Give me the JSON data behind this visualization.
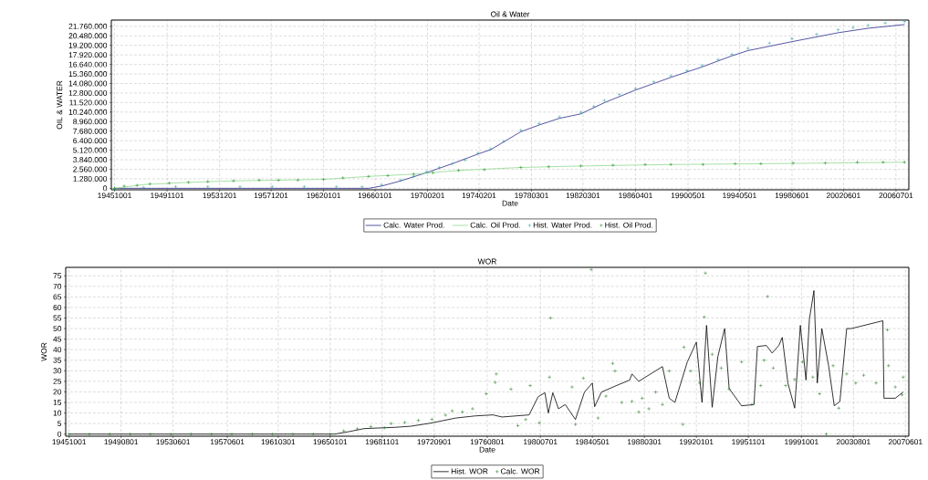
{
  "chart_data": [
    {
      "type": "line",
      "title": "Oil & Water",
      "xlabel": "Date",
      "ylabel": "OIL & WATER",
      "xlim": [
        "1945-07-01",
        "2007-07-01"
      ],
      "ylim": [
        -200000,
        22600000
      ],
      "xticks": [
        {
          "value": "1945-10-01",
          "label": "19451001"
        },
        {
          "value": "1949-11-01",
          "label": "19491101"
        },
        {
          "value": "1953-12-01",
          "label": "19531201"
        },
        {
          "value": "1957-12-01",
          "label": "19571201"
        },
        {
          "value": "1962-01-01",
          "label": "19620101"
        },
        {
          "value": "1966-01-01",
          "label": "19660101"
        },
        {
          "value": "1970-02-01",
          "label": "19700201"
        },
        {
          "value": "1974-02-01",
          "label": "19740201"
        },
        {
          "value": "1978-03-01",
          "label": "19780301"
        },
        {
          "value": "1982-03-01",
          "label": "19820301"
        },
        {
          "value": "1986-04-01",
          "label": "19860401"
        },
        {
          "value": "1990-05-01",
          "label": "19900501"
        },
        {
          "value": "1994-05-01",
          "label": "19940501"
        },
        {
          "value": "1998-06-01",
          "label": "19980601"
        },
        {
          "value": "2002-06-01",
          "label": "20020601"
        },
        {
          "value": "2006-07-01",
          "label": "20060701"
        }
      ],
      "yticks": [
        0,
        {
          "value": 1280000,
          "label": "1.280.000"
        },
        {
          "value": 2560000,
          "label": "2.560.000"
        },
        {
          "value": 3840000,
          "label": "3.840.000"
        },
        {
          "value": 5120000,
          "label": "5.120.000"
        },
        {
          "value": 6400000,
          "label": "6.400.000"
        },
        {
          "value": 7680000,
          "label": "7.680.000"
        },
        {
          "value": 8960000,
          "label": "8.960.000"
        },
        {
          "value": 10240000,
          "label": "10.240.000"
        },
        {
          "value": 11520000,
          "label": "11.520.000"
        },
        {
          "value": 12800000,
          "label": "12.800.000"
        },
        {
          "value": 14080000,
          "label": "14.080.000"
        },
        {
          "value": 15360000,
          "label": "15.360.000"
        },
        {
          "value": 16640000,
          "label": "16.640.000"
        },
        {
          "value": 17920000,
          "label": "17.920.000"
        },
        {
          "value": 19200000,
          "label": "19.200.000"
        },
        {
          "value": 20480000,
          "label": "20.480.000"
        },
        {
          "value": 21760000,
          "label": "21.760.000"
        }
      ],
      "grid": true,
      "legend": "bottom",
      "series": [
        {
          "name": "Calc. Water Prod.",
          "type": "line",
          "color": "#2b2b8c",
          "x": [
            "1945-10",
            "1965-07",
            "1966-07",
            "1968-01",
            "1970-01",
            "1972-01",
            "1974-01",
            "1975-01",
            "1977-05",
            "1978-10",
            "1980-05",
            "1982-01",
            "1983-11",
            "1986-04",
            "1989-01",
            "1991-06",
            "1993-10",
            "1995-01",
            "1998-06",
            "2002-01",
            "2004-05",
            "2007-03"
          ],
          "values": [
            0,
            0,
            300000,
            1000000,
            2100000,
            3300000,
            4600000,
            5200000,
            7600000,
            8500000,
            9400000,
            10000000,
            11500000,
            13200000,
            14900000,
            16300000,
            17800000,
            18500000,
            19700000,
            20900000,
            21500000,
            22000000
          ]
        },
        {
          "name": "Calc. Oil Prod.",
          "type": "line",
          "color": "#90d890",
          "x": [
            "1945-10",
            "1948-01",
            "1951-07",
            "1955-01",
            "1958-07",
            "1962-01",
            "1965-07",
            "1969-01",
            "1972-07",
            "1977-05",
            "1982-01",
            "1989-01",
            "1996-01",
            "2007-03"
          ],
          "values": [
            0,
            500000,
            800000,
            1000000,
            1100000,
            1200000,
            1600000,
            1900000,
            2400000,
            2800000,
            3000000,
            3200000,
            3300000,
            3500000
          ]
        },
        {
          "name": "Hist. Water Prod.",
          "type": "scatter",
          "marker": "cross",
          "color": "#2a9d9d",
          "x": [
            "1945-10",
            "1948-01",
            "1950-07",
            "1953-01",
            "1955-07",
            "1958-01",
            "1960-07",
            "1963-01",
            "1965-01",
            "1966-07",
            "1968-01",
            "1969-01",
            "1970-01",
            "1971-01",
            "1972-01",
            "1973-01",
            "1974-01",
            "1975-01",
            "1976-01",
            "1977-05",
            "1978-10",
            "1980-05",
            "1982-01",
            "1983-01",
            "1983-11",
            "1985-01",
            "1986-04",
            "1987-09",
            "1989-01",
            "1990-04",
            "1991-06",
            "1992-09",
            "1993-10",
            "1995-01",
            "1996-09",
            "1998-06",
            "2000-05",
            "2002-01",
            "2003-03",
            "2004-05",
            "2005-09",
            "2007-03"
          ],
          "values": [
            0,
            100000,
            200000,
            200000,
            200000,
            200000,
            200000,
            200000,
            200000,
            500000,
            1100000,
            1600000,
            2200000,
            2800000,
            3300000,
            3800000,
            4700000,
            5300000,
            6300000,
            7800000,
            8700000,
            9600000,
            10200000,
            11000000,
            11800000,
            12600000,
            13400000,
            14300000,
            15100000,
            15800000,
            16500000,
            17300000,
            18000000,
            18800000,
            19500000,
            20100000,
            20700000,
            21300000,
            21600000,
            21900000,
            22200000,
            22400000
          ]
        },
        {
          "name": "Hist. Oil Prod.",
          "type": "scatter",
          "marker": "cross",
          "color": "#1a8a1a",
          "x": [
            "1945-10",
            "1946-07",
            "1947-07",
            "1948-07",
            "1950-01",
            "1951-07",
            "1953-01",
            "1955-01",
            "1957-01",
            "1958-07",
            "1960-01",
            "1962-01",
            "1963-07",
            "1965-07",
            "1967-01",
            "1969-01",
            "1970-07",
            "1972-07",
            "1974-07",
            "1977-05",
            "1979-07",
            "1982-01",
            "1984-07",
            "1987-01",
            "1989-01",
            "1991-07",
            "1994-01",
            "1996-01",
            "1998-07",
            "2001-01",
            "2003-07",
            "2005-07",
            "2007-03"
          ],
          "values": [
            0,
            300000,
            400000,
            600000,
            700000,
            800000,
            900000,
            1000000,
            1100000,
            1100000,
            1100000,
            1200000,
            1400000,
            1600000,
            1700000,
            1900000,
            2100000,
            2400000,
            2500000,
            2800000,
            2900000,
            3000000,
            3100000,
            3200000,
            3200000,
            3200000,
            3300000,
            3300000,
            3400000,
            3400000,
            3500000,
            3500000,
            3500000
          ]
        }
      ]
    },
    {
      "type": "line",
      "title": "WOR",
      "xlabel": "Date",
      "ylabel": "WOR",
      "xlim": [
        "1945-07-01",
        "2007-09-01"
      ],
      "ylim": [
        -1,
        79
      ],
      "xticks": [
        {
          "value": "1945-10-01",
          "label": "19451001"
        },
        {
          "value": "1949-08-01",
          "label": "19490801"
        },
        {
          "value": "1953-06-01",
          "label": "19530601"
        },
        {
          "value": "1957-06-01",
          "label": "19570601"
        },
        {
          "value": "1961-03-01",
          "label": "19610301"
        },
        {
          "value": "1965-01-01",
          "label": "19650101"
        },
        {
          "value": "1968-11-01",
          "label": "19681101"
        },
        {
          "value": "1972-09-01",
          "label": "19720901"
        },
        {
          "value": "1976-08-01",
          "label": "19760801"
        },
        {
          "value": "1980-07-01",
          "label": "19800701"
        },
        {
          "value": "1984-05-01",
          "label": "19840501"
        },
        {
          "value": "1988-03-01",
          "label": "19880301"
        },
        {
          "value": "1992-01-01",
          "label": "19920101"
        },
        {
          "value": "1995-11-01",
          "label": "19951101"
        },
        {
          "value": "1999-10-01",
          "label": "19991001"
        },
        {
          "value": "2003-08-01",
          "label": "20030801"
        },
        {
          "value": "2007-06-01",
          "label": "20070601"
        }
      ],
      "yticks": [
        0,
        5,
        10,
        15,
        20,
        25,
        30,
        35,
        40,
        45,
        50,
        55,
        60,
        65,
        70,
        75
      ],
      "grid": true,
      "legend": "bottom",
      "series": [
        {
          "name": "Hist. WOR",
          "type": "line",
          "color": "#000000",
          "x": [
            "1945-10",
            "1965-05",
            "1966-05",
            "1967-07",
            "1969-10",
            "1970-12",
            "1972-06",
            "1974-04",
            "1975-09",
            "1977-01",
            "1977-09",
            "1979-09",
            "1980-05",
            "1980-11",
            "1981-02",
            "1981-06",
            "1981-11",
            "1982-05",
            "1983-02",
            "1983-10",
            "1984-05",
            "1984-07",
            "1985-01",
            "1986-01",
            "1987-02",
            "1987-04",
            "1987-10",
            "1989-07",
            "1990-01",
            "1990-06",
            "1991-05",
            "1992-01",
            "1992-06",
            "1992-10",
            "1993-03",
            "1993-08",
            "1994-02",
            "1994-06",
            "1995-05",
            "1996-04",
            "1996-07",
            "1997-03",
            "1997-08",
            "1998-02",
            "1998-05",
            "1998-10",
            "1999-04",
            "1999-09",
            "2000-02",
            "2000-05",
            "2000-09",
            "2000-12",
            "2001-04",
            "2001-10",
            "2002-03",
            "2002-08",
            "2003-02",
            "2003-06",
            "2005-10",
            "2005-11",
            "2006-09",
            "2007-04"
          ],
          "values": [
            0,
            0,
            1.1,
            2.6,
            3.2,
            3.7,
            5.2,
            7.6,
            8.6,
            9.1,
            8.1,
            9.1,
            17.7,
            19.6,
            10,
            19.6,
            12,
            14,
            6.9,
            19.9,
            24.2,
            13,
            19.9,
            22.7,
            25.6,
            28.5,
            25,
            32,
            17,
            15,
            34.2,
            43.6,
            15,
            51.5,
            12.7,
            36.7,
            50,
            21.6,
            13.4,
            14,
            41.5,
            42,
            38.4,
            42,
            45.8,
            24.2,
            12.3,
            51.5,
            25.6,
            54.4,
            68,
            24.2,
            50,
            32.4,
            13.4,
            15.5,
            50,
            50,
            53.7,
            17,
            17,
            19.9
          ]
        },
        {
          "name": "Calc. WOR",
          "type": "scatter",
          "marker": "cross",
          "color": "#1a7a1a",
          "x": [
            "1945-10",
            "1947-04",
            "1948-10",
            "1950-04",
            "1951-10",
            "1953-04",
            "1954-10",
            "1956-04",
            "1957-10",
            "1959-04",
            "1960-10",
            "1962-04",
            "1963-10",
            "1965-01",
            "1966-01",
            "1967-01",
            "1968-01",
            "1969-01",
            "1969-07",
            "1970-07",
            "1971-07",
            "1972-07",
            "1973-07",
            "1974-01",
            "1974-10",
            "1975-07",
            "1976-07",
            "1977-03",
            "1977-04",
            "1978-05",
            "1978-11",
            "1979-06",
            "1979-10",
            "1980-06",
            "1981-03",
            "1981-04",
            "1982-11",
            "1983-02",
            "1983-09",
            "1984-04",
            "1984-10",
            "1985-05",
            "1985-11",
            "1986-01",
            "1986-07",
            "1987-04",
            "1987-10",
            "1988-01",
            "1988-07",
            "1989-01",
            "1989-07",
            "1990-01",
            "1991-01",
            "1991-02",
            "1991-08",
            "1992-04",
            "1992-08",
            "1992-09",
            "1993-03",
            "1993-11",
            "1994-06",
            "1995-05",
            "1996-02",
            "1996-10",
            "1997-01",
            "1997-04",
            "1997-09",
            "1998-08",
            "1999-04",
            "1999-11",
            "2000-08",
            "2001-02",
            "2001-08",
            "2002-02",
            "2002-07",
            "2003-02",
            "2003-10",
            "2004-05",
            "2005-04",
            "2006-02",
            "2006-03",
            "2006-09",
            "2007-03",
            "2007-04"
          ],
          "values": [
            0,
            0,
            0,
            0,
            0,
            0,
            0,
            0,
            0,
            0,
            0,
            0,
            0,
            0,
            1.5,
            2.5,
            3.5,
            3,
            5,
            5.5,
            6.5,
            7,
            9,
            11,
            10.5,
            12,
            19.1,
            24.5,
            28.5,
            21.3,
            4,
            6.9,
            23,
            5.3,
            27,
            55,
            22.3,
            4.6,
            26.5,
            78,
            7.6,
            18,
            33.5,
            29.9,
            15,
            15.5,
            10.5,
            17,
            12,
            19.9,
            14,
            29.9,
            4.6,
            41.2,
            29.9,
            24.2,
            55.5,
            76.3,
            37.8,
            31.3,
            21.3,
            34.2,
            14,
            23,
            35,
            65.2,
            31.3,
            23,
            25.9,
            34.2,
            27,
            19.1,
            0,
            32.4,
            12.3,
            28.5,
            24.2,
            27.9,
            24.2,
            49.4,
            32.4,
            22.3,
            18.6,
            27
          ]
        }
      ]
    }
  ]
}
